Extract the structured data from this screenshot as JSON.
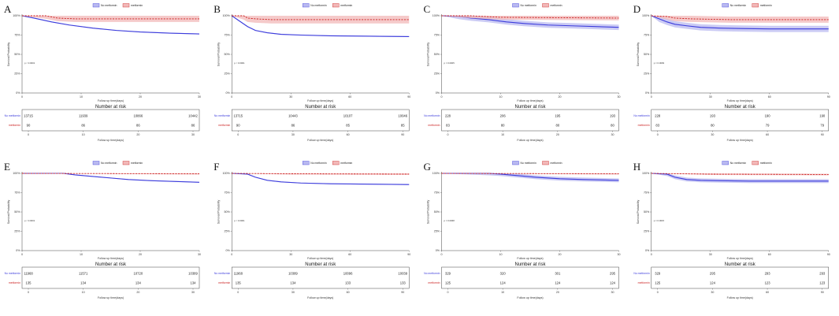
{
  "colors": {
    "no_metformin": "#3b3bdc",
    "no_metformin_band": "#b9b9f0",
    "metformin": "#cc2222",
    "metformin_band": "#f2b8b8",
    "axis": "#444444"
  },
  "common": {
    "legend": [
      "No metformin",
      "metformin"
    ],
    "ylabel": "Survival Probability",
    "xlabel": "Follow up time(days)",
    "risk_title": "Number at risk",
    "risk_xlabel": "Follow up time(days)",
    "group_labels": [
      "No metformin",
      "metformin"
    ],
    "yticks": [
      "0%",
      "25%",
      "50%",
      "75%",
      "100%"
    ]
  },
  "chart_data": [
    {
      "label": "A",
      "type": "line",
      "xmax": 30,
      "xticks": [
        "0",
        "10",
        "20",
        "30"
      ],
      "pvalue": "p < 0.0001",
      "series": [
        {
          "name": "No metformin",
          "x": [
            0,
            2,
            5,
            8,
            12,
            16,
            20,
            25,
            30
          ],
          "y": [
            100,
            97,
            92,
            88,
            84,
            81,
            79,
            77.5,
            76.5
          ],
          "band": 0.6
        },
        {
          "name": "metformin",
          "x": [
            0,
            4,
            6,
            9,
            14,
            20,
            30
          ],
          "y": [
            100,
            100,
            97,
            96,
            96,
            96,
            96
          ],
          "band": 4
        }
      ],
      "risk": {
        "xticks": [
          "0",
          "10",
          "20",
          "30"
        ],
        "no_metformin": [
          "13715",
          "11939",
          "10866",
          "10442"
        ],
        "metformin": [
          "90",
          "86",
          "86",
          "86"
        ]
      }
    },
    {
      "label": "B",
      "type": "line",
      "xmax": 90,
      "xticks": [
        "0",
        "30",
        "60",
        "90"
      ],
      "pvalue": "p < 0.0001",
      "series": [
        {
          "name": "No metformin",
          "x": [
            0,
            4,
            8,
            12,
            18,
            25,
            35,
            50,
            70,
            90
          ],
          "y": [
            100,
            93,
            86,
            81,
            78,
            76,
            75,
            74,
            73.5,
            73
          ],
          "band": 0.6
        },
        {
          "name": "metformin",
          "x": [
            0,
            6,
            8,
            12,
            20,
            40,
            60,
            90
          ],
          "y": [
            100,
            100,
            97,
            96,
            95,
            95,
            95,
            95
          ],
          "band": 5
        }
      ],
      "risk": {
        "xticks": [
          "0",
          "30",
          "60",
          "90"
        ],
        "no_metformin": [
          "13715",
          "10443",
          "10107",
          "10046"
        ],
        "metformin": [
          "90",
          "86",
          "85",
          "85"
        ]
      }
    },
    {
      "label": "C",
      "type": "line",
      "xmax": 30,
      "xticks": [
        "0",
        "10",
        "20",
        "30"
      ],
      "pvalue": "p = 0.0005",
      "series": [
        {
          "name": "No metformin",
          "x": [
            0,
            3,
            5,
            8,
            11,
            14,
            18,
            22,
            26,
            30
          ],
          "y": [
            100,
            99,
            97,
            95,
            92,
            90,
            88,
            87,
            86,
            85
          ],
          "band": 3.5
        },
        {
          "name": "metformin",
          "x": [
            0,
            5,
            10,
            30
          ],
          "y": [
            100,
            100,
            98,
            97
          ],
          "band": 3
        }
      ],
      "risk": {
        "xticks": [
          "0",
          "10",
          "20",
          "30"
        ],
        "no_metformin": [
          "228",
          "206",
          "195",
          "193"
        ],
        "metformin": [
          "83",
          "80",
          "80",
          "80"
        ]
      }
    },
    {
      "label": "D",
      "type": "line",
      "xmax": 90,
      "xticks": [
        "0",
        "30",
        "60",
        "90"
      ],
      "pvalue": "p = 0.0009",
      "series": [
        {
          "name": "No metformin",
          "x": [
            0,
            4,
            8,
            12,
            18,
            25,
            35,
            45,
            60,
            90
          ],
          "y": [
            100,
            96,
            92,
            89,
            87,
            85,
            84,
            83.5,
            83,
            83
          ],
          "band": 4
        },
        {
          "name": "metformin",
          "x": [
            0,
            8,
            12,
            20,
            40,
            60,
            90
          ],
          "y": [
            100,
            99,
            97,
            96,
            95,
            95,
            95
          ],
          "band": 4
        }
      ],
      "risk": {
        "xticks": [
          "0",
          "30",
          "60",
          "90"
        ],
        "no_metformin": [
          "228",
          "193",
          "190",
          "190"
        ],
        "metformin": [
          "83",
          "80",
          "79",
          "79"
        ]
      }
    },
    {
      "label": "E",
      "type": "line",
      "xmax": 30,
      "xticks": [
        "0",
        "10",
        "20",
        "30"
      ],
      "pvalue": "p < 0.0001",
      "series": [
        {
          "name": "No metformin",
          "x": [
            0,
            7,
            9,
            12,
            15,
            18,
            22,
            26,
            30
          ],
          "y": [
            100,
            100,
            98,
            96,
            94,
            92,
            90.5,
            89.5,
            88.5
          ],
          "band": 0.5
        },
        {
          "name": "metformin",
          "x": [
            0,
            30
          ],
          "y": [
            100,
            99.5
          ],
          "band": 1
        }
      ],
      "risk": {
        "xticks": [
          "0",
          "10",
          "20",
          "30"
        ],
        "no_metformin": [
          "11968",
          "11571",
          "10720",
          "10389"
        ],
        "metformin": [
          "135",
          "134",
          "134",
          "134"
        ]
      }
    },
    {
      "label": "F",
      "type": "line",
      "xmax": 90,
      "xticks": [
        "0",
        "30",
        "60",
        "90"
      ],
      "pvalue": "p < 0.0001",
      "series": [
        {
          "name": "No metformin",
          "x": [
            0,
            8,
            12,
            18,
            25,
            35,
            50,
            70,
            90
          ],
          "y": [
            100,
            99,
            95,
            91,
            89,
            87.5,
            86.5,
            86,
            85.5
          ],
          "band": 0.5
        },
        {
          "name": "metformin",
          "x": [
            0,
            30,
            90
          ],
          "y": [
            100,
            99.5,
            99
          ],
          "band": 1
        }
      ],
      "risk": {
        "xticks": [
          "0",
          "30",
          "60",
          "90"
        ],
        "no_metformin": [
          "11968",
          "10389",
          "10096",
          "10039"
        ],
        "metformin": [
          "135",
          "134",
          "133",
          "133"
        ]
      }
    },
    {
      "label": "G",
      "type": "line",
      "xmax": 30,
      "xticks": [
        "0",
        "10",
        "20",
        "30"
      ],
      "pvalue": "p = 0.0068",
      "series": [
        {
          "name": "No metformin",
          "x": [
            0,
            8,
            10,
            13,
            16,
            20,
            24,
            30
          ],
          "y": [
            100,
            100,
            99,
            97,
            95,
            93,
            92,
            91
          ],
          "band": 2.5
        },
        {
          "name": "metformin",
          "x": [
            0,
            30
          ],
          "y": [
            100,
            99.5
          ],
          "band": 1
        }
      ],
      "risk": {
        "xticks": [
          "0",
          "10",
          "20",
          "30"
        ],
        "no_metformin": [
          "329",
          "320",
          "301",
          "295"
        ],
        "metformin": [
          "125",
          "124",
          "124",
          "124"
        ]
      }
    },
    {
      "label": "H",
      "type": "line",
      "xmax": 90,
      "xticks": [
        "0",
        "30",
        "60",
        "90"
      ],
      "pvalue": "p = 0.0015",
      "series": [
        {
          "name": "No metformin",
          "x": [
            0,
            8,
            12,
            18,
            25,
            35,
            50,
            70,
            90
          ],
          "y": [
            100,
            99,
            95,
            92,
            91,
            90.5,
            90,
            90,
            90
          ],
          "band": 2.5
        },
        {
          "name": "metformin",
          "x": [
            0,
            30,
            90
          ],
          "y": [
            100,
            99,
            98.5
          ],
          "band": 1
        }
      ],
      "risk": {
        "xticks": [
          "0",
          "30",
          "60",
          "90"
        ],
        "no_metformin": [
          "329",
          "295",
          "293",
          "293"
        ],
        "metformin": [
          "125",
          "124",
          "123",
          "123"
        ]
      }
    }
  ]
}
